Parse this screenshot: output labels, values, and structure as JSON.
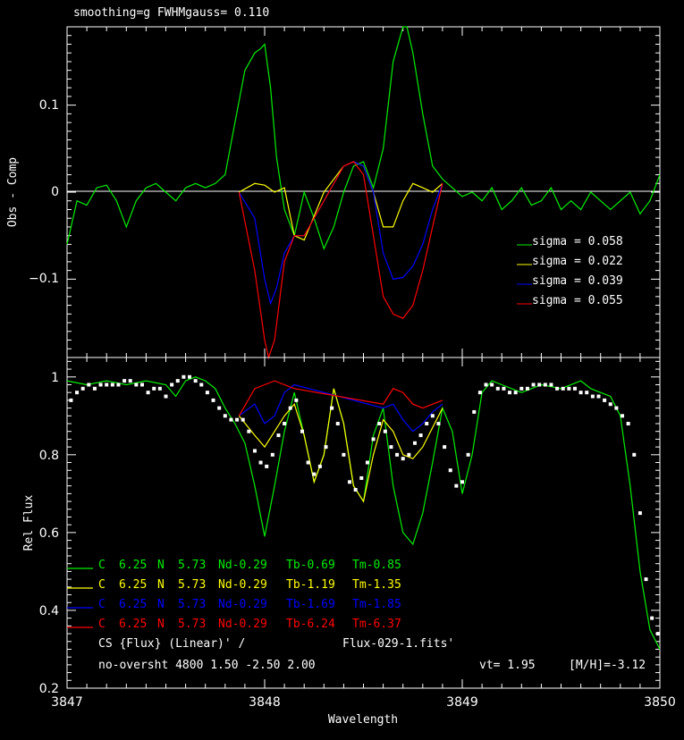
{
  "header": "smoothing=g  FWHMgauss=  0.110",
  "top_panel": {
    "ylabel": "Obs  - Comp",
    "yticks": [
      "0.1",
      "0",
      "−0.1"
    ],
    "legend": [
      {
        "label": "sigma  =  0.058",
        "color": "#00ee00"
      },
      {
        "label": "sigma  =  0.022",
        "color": "#ffff00"
      },
      {
        "label": "sigma  =  0.039",
        "color": "#0000ff"
      },
      {
        "label": "sigma  =  0.055",
        "color": "#ff0000"
      }
    ]
  },
  "bottom_panel": {
    "ylabel": "Rel  Flux",
    "yticks": [
      "1",
      "0.8",
      "0.6",
      "0.4",
      "0.2"
    ],
    "xlabel": "Wavelength",
    "xticks": [
      "3847",
      "3848",
      "3849",
      "3850"
    ],
    "abundance_rows": [
      {
        "color": "#00ee00",
        "cols": [
          "C",
          "6.25",
          "N",
          "5.73",
          "Nd-0.29",
          "Tb-0.69",
          "Tm-0.85"
        ]
      },
      {
        "color": "#ffff00",
        "cols": [
          "C",
          "6.25",
          "N",
          "5.73",
          "Nd-0.29",
          "Tb-1.19",
          "Tm-1.35"
        ]
      },
      {
        "color": "#0000ff",
        "cols": [
          "C",
          "6.25",
          "N",
          "5.73",
          "Nd-0.29",
          "Tb-1.69",
          "Tm-1.85"
        ]
      },
      {
        "color": "#ff0000",
        "cols": [
          "C",
          "6.25",
          "N",
          "5.73",
          "Nd-0.29",
          "Tb-6.24",
          "Tm-6.37"
        ]
      }
    ],
    "info_line1_left": "CS {Flux} (Linear)' /",
    "info_line1_right": "Flux-029-1.fits'",
    "info_line2_left": "no-oversht 4800 1.50 -2.50 2.00",
    "vt": "vt=  1.95",
    "mh": "[M/H]=-3.12"
  },
  "chart_data": [
    {
      "type": "line",
      "title": "smoothing=g  FWHMgauss=  0.110",
      "ylabel": "Obs  - Comp",
      "xlim": [
        3847,
        3850
      ],
      "ylim": [
        -0.19,
        0.19
      ],
      "series": [
        {
          "name": "sigma  =  0.058",
          "color": "#00ee00",
          "x": [
            3847.0,
            3847.05,
            3847.1,
            3847.15,
            3847.2,
            3847.25,
            3847.3,
            3847.35,
            3847.4,
            3847.45,
            3847.5,
            3847.55,
            3847.6,
            3847.65,
            3847.7,
            3847.75,
            3847.8,
            3847.85,
            3847.9,
            3847.95,
            3847.98,
            3848.0,
            3848.03,
            3848.06,
            3848.1,
            3848.15,
            3848.2,
            3848.25,
            3848.3,
            3848.35,
            3848.4,
            3848.45,
            3848.5,
            3848.55,
            3848.6,
            3848.65,
            3848.7,
            3848.72,
            3848.75,
            3848.8,
            3848.85,
            3848.9,
            3848.95,
            3849.0,
            3849.05,
            3849.1,
            3849.15,
            3849.2,
            3849.25,
            3849.3,
            3849.35,
            3849.4,
            3849.45,
            3849.5,
            3849.55,
            3849.6,
            3849.65,
            3849.7,
            3849.75,
            3849.8,
            3849.85,
            3849.9,
            3849.95,
            3850.0
          ],
          "y": [
            -0.06,
            -0.01,
            -0.015,
            0.005,
            0.008,
            -0.01,
            -0.04,
            -0.01,
            0.005,
            0.01,
            0.0,
            -0.01,
            0.005,
            0.01,
            0.005,
            0.01,
            0.02,
            0.08,
            0.14,
            0.16,
            0.165,
            0.17,
            0.12,
            0.04,
            -0.02,
            -0.05,
            0.0,
            -0.03,
            -0.065,
            -0.04,
            0.0,
            0.03,
            0.035,
            0.005,
            0.05,
            0.15,
            0.19,
            0.19,
            0.16,
            0.09,
            0.03,
            0.015,
            0.005,
            -0.005,
            0.0,
            -0.01,
            0.005,
            -0.02,
            -0.01,
            0.005,
            -0.015,
            -0.01,
            0.005,
            -0.02,
            -0.01,
            -0.02,
            0.0,
            -0.01,
            -0.02,
            -0.01,
            0.0,
            -0.025,
            -0.01,
            0.02
          ]
        },
        {
          "name": "sigma  =  0.022",
          "color": "#ffff00",
          "x": [
            3847.87,
            3847.95,
            3848.0,
            3848.05,
            3848.1,
            3848.15,
            3848.2,
            3848.3,
            3848.4,
            3848.45,
            3848.5,
            3848.55,
            3848.6,
            3848.65,
            3848.7,
            3848.75,
            3848.8,
            3848.85,
            3848.9
          ],
          "y": [
            0.0,
            0.01,
            0.008,
            0.0,
            0.005,
            -0.05,
            -0.055,
            0.0,
            0.03,
            0.035,
            0.03,
            0.0,
            -0.04,
            -0.04,
            -0.01,
            0.01,
            0.005,
            0.0,
            0.01
          ]
        },
        {
          "name": "sigma  =  0.039",
          "color": "#0000ff",
          "x": [
            3847.87,
            3847.95,
            3848.0,
            3848.03,
            3848.06,
            3848.1,
            3848.15,
            3848.2,
            3848.4,
            3848.45,
            3848.5,
            3848.55,
            3848.6,
            3848.65,
            3848.7,
            3848.75,
            3848.8,
            3848.85,
            3848.9
          ],
          "y": [
            0.0,
            -0.03,
            -0.1,
            -0.128,
            -0.11,
            -0.07,
            -0.05,
            -0.05,
            0.03,
            0.035,
            0.03,
            0.0,
            -0.07,
            -0.1,
            -0.098,
            -0.085,
            -0.06,
            -0.02,
            0.01
          ]
        },
        {
          "name": "sigma  =  0.055",
          "color": "#ff0000",
          "x": [
            3847.87,
            3847.95,
            3848.0,
            3848.02,
            3848.05,
            3848.1,
            3848.15,
            3848.2,
            3848.4,
            3848.45,
            3848.5,
            3848.55,
            3848.6,
            3848.65,
            3848.7,
            3848.75,
            3848.8,
            3848.85,
            3848.9
          ],
          "y": [
            0.0,
            -0.09,
            -0.17,
            -0.19,
            -0.17,
            -0.08,
            -0.05,
            -0.05,
            0.03,
            0.035,
            0.02,
            -0.05,
            -0.12,
            -0.14,
            -0.145,
            -0.13,
            -0.09,
            -0.04,
            0.01
          ]
        }
      ]
    },
    {
      "type": "line",
      "xlabel": "Wavelength",
      "ylabel": "Rel  Flux",
      "xlim": [
        3847,
        3850
      ],
      "ylim": [
        0.2,
        1.05
      ],
      "series": [
        {
          "name": "C 6.25 N 5.73 Nd-0.29 Tb-0.69 Tm-0.85",
          "color": "#00ee00",
          "x": [
            3847.0,
            3847.1,
            3847.2,
            3847.3,
            3847.4,
            3847.5,
            3847.55,
            3847.6,
            3847.65,
            3847.7,
            3847.75,
            3847.8,
            3847.85,
            3847.9,
            3847.95,
            3848.0,
            3848.05,
            3848.1,
            3848.15,
            3848.2,
            3848.25,
            3848.3,
            3848.35,
            3848.4,
            3848.45,
            3848.5,
            3848.55,
            3848.6,
            3848.65,
            3848.7,
            3848.75,
            3848.8,
            3848.85,
            3848.9,
            3848.95,
            3849.0,
            3849.05,
            3849.1,
            3849.15,
            3849.2,
            3849.3,
            3849.4,
            3849.5,
            3849.6,
            3849.65,
            3849.7,
            3849.75,
            3849.8,
            3849.85,
            3849.9,
            3849.95,
            3850.0
          ],
          "y": [
            0.99,
            0.98,
            0.99,
            0.98,
            0.99,
            0.98,
            0.95,
            0.99,
            1.0,
            0.99,
            0.97,
            0.92,
            0.88,
            0.83,
            0.72,
            0.59,
            0.72,
            0.86,
            0.96,
            0.85,
            0.73,
            0.8,
            0.97,
            0.88,
            0.72,
            0.68,
            0.85,
            0.92,
            0.72,
            0.6,
            0.57,
            0.65,
            0.78,
            0.92,
            0.86,
            0.7,
            0.8,
            0.96,
            0.99,
            0.98,
            0.96,
            0.98,
            0.97,
            0.99,
            0.97,
            0.96,
            0.95,
            0.9,
            0.72,
            0.5,
            0.35,
            0.3
          ]
        },
        {
          "name": "C 6.25 N 5.73 Nd-0.29 Tb-1.19 Tm-1.35",
          "color": "#ffff00",
          "x": [
            3847.87,
            3847.95,
            3848.0,
            3848.05,
            3848.1,
            3848.15,
            3848.2,
            3848.25,
            3848.3,
            3848.35,
            3848.4,
            3848.45,
            3848.5,
            3848.55,
            3848.6,
            3848.65,
            3848.7,
            3848.75,
            3848.8,
            3848.85,
            3848.9
          ],
          "y": [
            0.9,
            0.85,
            0.82,
            0.86,
            0.9,
            0.93,
            0.85,
            0.73,
            0.8,
            0.97,
            0.88,
            0.72,
            0.68,
            0.8,
            0.89,
            0.86,
            0.8,
            0.79,
            0.82,
            0.87,
            0.92
          ]
        },
        {
          "name": "C 6.25 N 5.73 Nd-0.29 Tb-1.69 Tm-1.85",
          "color": "#0000ff",
          "x": [
            3847.87,
            3847.95,
            3848.0,
            3848.05,
            3848.1,
            3848.15,
            3848.6,
            3848.65,
            3848.7,
            3848.75,
            3848.8,
            3848.85,
            3848.9
          ],
          "y": [
            0.9,
            0.93,
            0.88,
            0.9,
            0.96,
            0.98,
            0.92,
            0.93,
            0.89,
            0.86,
            0.88,
            0.91,
            0.93
          ]
        },
        {
          "name": "C 6.25 N 5.73 Nd-0.29 Tb-6.24 Tm-6.37",
          "color": "#ff0000",
          "x": [
            3847.87,
            3847.95,
            3848.0,
            3848.05,
            3848.1,
            3848.15,
            3848.6,
            3848.65,
            3848.7,
            3848.75,
            3848.8,
            3848.85,
            3848.9
          ],
          "y": [
            0.9,
            0.97,
            0.98,
            0.99,
            0.98,
            0.97,
            0.93,
            0.97,
            0.96,
            0.93,
            0.92,
            0.93,
            0.94
          ]
        },
        {
          "name": "observed",
          "color": "#ffffff",
          "marker": "square",
          "x": [
            3847.02,
            3847.05,
            3847.08,
            3847.11,
            3847.14,
            3847.17,
            3847.2,
            3847.23,
            3847.26,
            3847.29,
            3847.32,
            3847.35,
            3847.38,
            3847.41,
            3847.44,
            3847.47,
            3847.5,
            3847.53,
            3847.56,
            3847.59,
            3847.62,
            3847.65,
            3847.68,
            3847.71,
            3847.74,
            3847.77,
            3847.8,
            3847.83,
            3847.86,
            3847.89,
            3847.92,
            3847.95,
            3847.98,
            3848.01,
            3848.04,
            3848.07,
            3848.1,
            3848.13,
            3848.16,
            3848.19,
            3848.22,
            3848.25,
            3848.28,
            3848.31,
            3848.34,
            3848.37,
            3848.4,
            3848.43,
            3848.46,
            3848.49,
            3848.52,
            3848.55,
            3848.58,
            3848.61,
            3848.64,
            3848.67,
            3848.7,
            3848.73,
            3848.76,
            3848.79,
            3848.82,
            3848.85,
            3848.88,
            3848.91,
            3848.94,
            3848.97,
            3849.0,
            3849.03,
            3849.06,
            3849.09,
            3849.12,
            3849.15,
            3849.18,
            3849.21,
            3849.24,
            3849.27,
            3849.3,
            3849.33,
            3849.36,
            3849.39,
            3849.42,
            3849.45,
            3849.48,
            3849.51,
            3849.54,
            3849.57,
            3849.6,
            3849.63,
            3849.66,
            3849.69,
            3849.72,
            3849.75,
            3849.78,
            3849.81,
            3849.84,
            3849.87,
            3849.9,
            3849.93,
            3849.96,
            3849.99
          ],
          "y": [
            0.94,
            0.96,
            0.97,
            0.98,
            0.97,
            0.98,
            0.98,
            0.98,
            0.98,
            0.99,
            0.99,
            0.98,
            0.98,
            0.96,
            0.97,
            0.97,
            0.95,
            0.98,
            0.99,
            1.0,
            1.0,
            0.99,
            0.98,
            0.96,
            0.94,
            0.92,
            0.9,
            0.89,
            0.89,
            0.89,
            0.86,
            0.81,
            0.78,
            0.77,
            0.8,
            0.85,
            0.88,
            0.92,
            0.94,
            0.86,
            0.78,
            0.75,
            0.77,
            0.82,
            0.92,
            0.88,
            0.8,
            0.73,
            0.71,
            0.74,
            0.78,
            0.84,
            0.88,
            0.86,
            0.82,
            0.8,
            0.79,
            0.8,
            0.83,
            0.85,
            0.88,
            0.9,
            0.88,
            0.82,
            0.76,
            0.72,
            0.73,
            0.8,
            0.91,
            0.96,
            0.98,
            0.98,
            0.97,
            0.97,
            0.96,
            0.96,
            0.97,
            0.97,
            0.98,
            0.98,
            0.98,
            0.98,
            0.97,
            0.97,
            0.97,
            0.97,
            0.96,
            0.96,
            0.95,
            0.95,
            0.94,
            0.93,
            0.92,
            0.9,
            0.88,
            0.8,
            0.65,
            0.48,
            0.38,
            0.34
          ]
        }
      ]
    }
  ]
}
